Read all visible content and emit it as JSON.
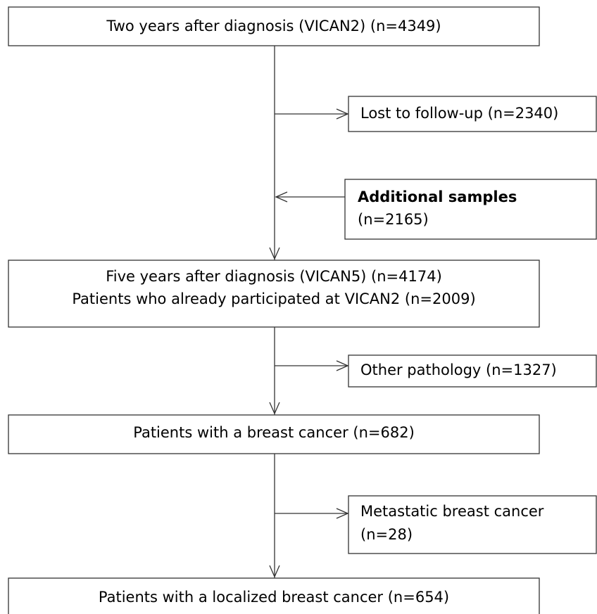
{
  "nodes": [
    {
      "lines": [
        "Two years after diagnosis (VICAN2) (n=4349)"
      ]
    },
    {
      "lines": [
        "Lost to follow-up (n=2340)"
      ]
    },
    {
      "title": "Additional samples",
      "lines": [
        "(n=2165)"
      ]
    },
    {
      "lines": [
        "Five years after diagnosis (VICAN5) (n=4174)",
        "Patients who already participated at VICAN2 (n=2009)"
      ]
    },
    {
      "lines": [
        "Other pathology (n=1327)"
      ]
    },
    {
      "lines": [
        "Patients with a breast cancer (n=682)"
      ]
    },
    {
      "lines": [
        "Metastatic breast cancer",
        "(n=28)"
      ]
    },
    {
      "lines": [
        "Patients with a localized breast cancer (n=654)"
      ]
    }
  ]
}
